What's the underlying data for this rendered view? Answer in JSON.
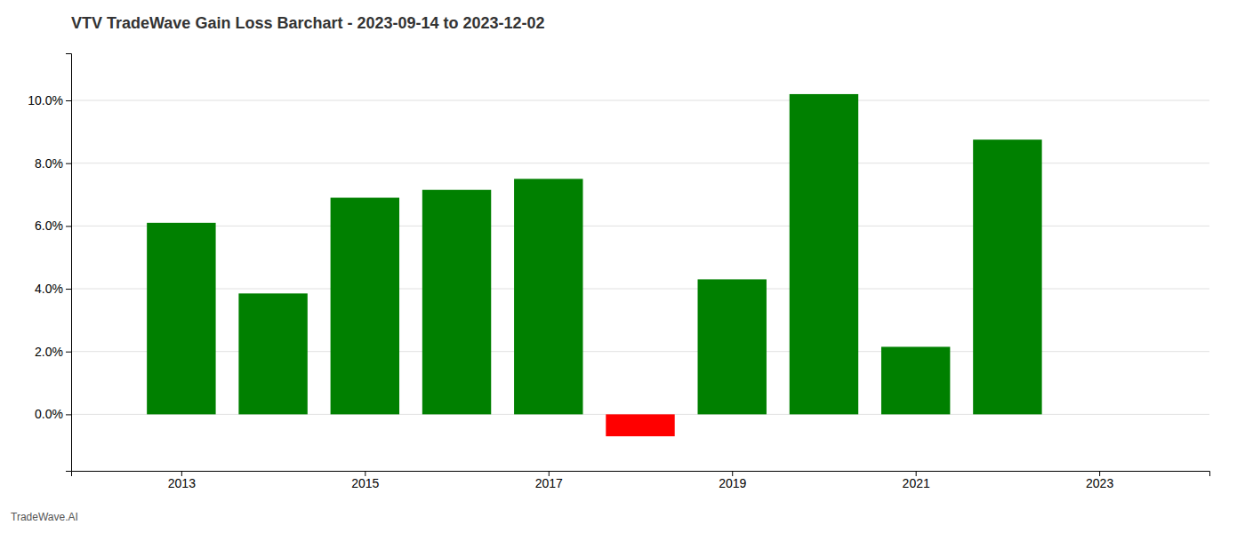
{
  "chart_data": {
    "type": "bar",
    "title": "VTV TradeWave Gain Loss Barchart - 2023-09-14 to 2023-12-02",
    "annotations": [
      "TradeWave.AI"
    ],
    "x": [
      2013,
      2014,
      2015,
      2016,
      2017,
      2018,
      2019,
      2020,
      2021,
      2022
    ],
    "values": [
      0.061,
      0.0385,
      0.069,
      0.0715,
      0.075,
      -0.007,
      0.043,
      0.102,
      0.0215,
      0.0875
    ],
    "colors": [
      "#008000",
      "#008000",
      "#008000",
      "#008000",
      "#008000",
      "#ff0000",
      "#008000",
      "#008000",
      "#008000",
      "#008000"
    ],
    "xlim": [
      2011.8,
      2024.2
    ],
    "xticks": [
      2013,
      2015,
      2017,
      2019,
      2021,
      2023
    ],
    "ylim": [
      -0.018,
      0.115
    ],
    "yticks": [
      {
        "value": 0.0,
        "label": "0.0%"
      },
      {
        "value": 0.02,
        "label": "2.0%"
      },
      {
        "value": 0.04,
        "label": "4.0%"
      },
      {
        "value": 0.06,
        "label": "6.0%"
      },
      {
        "value": 0.08,
        "label": "8.0%"
      },
      {
        "value": 0.1,
        "label": "10.0%"
      }
    ],
    "grid": true
  }
}
